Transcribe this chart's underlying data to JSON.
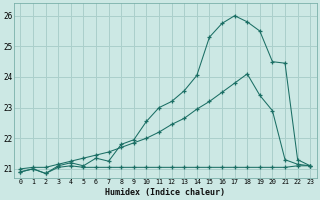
{
  "bg_color": "#cce8e4",
  "grid_color": "#aacfcb",
  "line_color": "#1a6e64",
  "xlabel": "Humidex (Indice chaleur)",
  "xlim": [
    -0.5,
    23.5
  ],
  "ylim": [
    20.7,
    26.4
  ],
  "yticks": [
    21,
    22,
    23,
    24,
    25,
    26
  ],
  "xticks": [
    0,
    1,
    2,
    3,
    4,
    5,
    6,
    7,
    8,
    9,
    10,
    11,
    12,
    13,
    14,
    15,
    16,
    17,
    18,
    19,
    20,
    21,
    22,
    23
  ],
  "line1_x": [
    0,
    1,
    2,
    3,
    4,
    5,
    6,
    7,
    8,
    9,
    10,
    11,
    12,
    13,
    14,
    15,
    16,
    17,
    18,
    19,
    20,
    21,
    22,
    23
  ],
  "line1_y": [
    20.9,
    21.0,
    20.85,
    21.05,
    21.1,
    21.05,
    21.05,
    21.05,
    21.05,
    21.05,
    21.05,
    21.05,
    21.05,
    21.05,
    21.05,
    21.05,
    21.05,
    21.05,
    21.05,
    21.05,
    21.05,
    21.05,
    21.1,
    21.1
  ],
  "line2_x": [
    0,
    1,
    2,
    3,
    4,
    5,
    6,
    7,
    8,
    9,
    10,
    11,
    12,
    13,
    14,
    15,
    16,
    17,
    18,
    19,
    20,
    21,
    22,
    23
  ],
  "line2_y": [
    21.0,
    21.05,
    21.05,
    21.15,
    21.25,
    21.35,
    21.45,
    21.55,
    21.7,
    21.85,
    22.0,
    22.2,
    22.45,
    22.65,
    22.95,
    23.2,
    23.5,
    23.8,
    24.1,
    23.4,
    22.9,
    21.3,
    21.15,
    21.1
  ],
  "line3_x": [
    0,
    1,
    2,
    3,
    4,
    5,
    6,
    7,
    8,
    9,
    10,
    11,
    12,
    13,
    14,
    15,
    16,
    17,
    18,
    19,
    20,
    21,
    22,
    23
  ],
  "line3_y": [
    20.9,
    21.0,
    20.85,
    21.1,
    21.2,
    21.1,
    21.35,
    21.25,
    21.8,
    21.95,
    22.55,
    23.0,
    23.2,
    23.55,
    24.05,
    25.3,
    25.75,
    26.0,
    25.8,
    25.5,
    24.5,
    24.45,
    21.3,
    21.1
  ]
}
